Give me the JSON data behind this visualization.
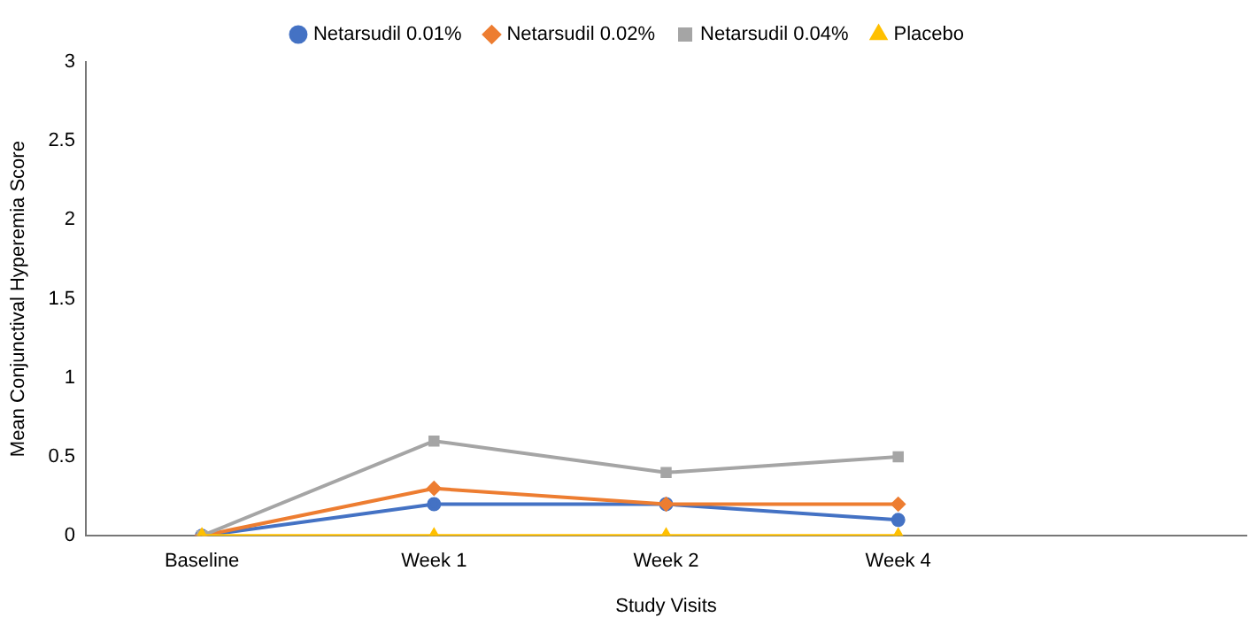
{
  "chart_data": {
    "type": "line",
    "xlabel": "Study Visits",
    "ylabel": "Mean Conjunctival Hyperemia Score",
    "categories": [
      "Baseline",
      "Week 1",
      "Week 2",
      "Week 4",
      null
    ],
    "ylim": [
      0,
      3
    ],
    "yticks": [
      0,
      0.5,
      1,
      1.5,
      2,
      2.5,
      3
    ],
    "grid": false,
    "legend": "top",
    "series": [
      {
        "name": "Netarsudil 0.01%",
        "color": "#4472c4",
        "marker": "circle",
        "values": [
          0,
          0.2,
          0.2,
          0.1,
          null
        ]
      },
      {
        "name": "Netarsudil 0.02%",
        "color": "#ed7d31",
        "marker": "diamond",
        "values": [
          0,
          0.3,
          0.2,
          0.2,
          null
        ]
      },
      {
        "name": "Netarsudil 0.04%",
        "color": "#a5a5a5",
        "marker": "square",
        "values": [
          0,
          0.6,
          0.4,
          0.5,
          null
        ]
      },
      {
        "name": "Placebo",
        "color": "#ffc000",
        "marker": "triangle",
        "values": [
          0,
          0,
          0,
          0,
          null
        ]
      }
    ]
  }
}
